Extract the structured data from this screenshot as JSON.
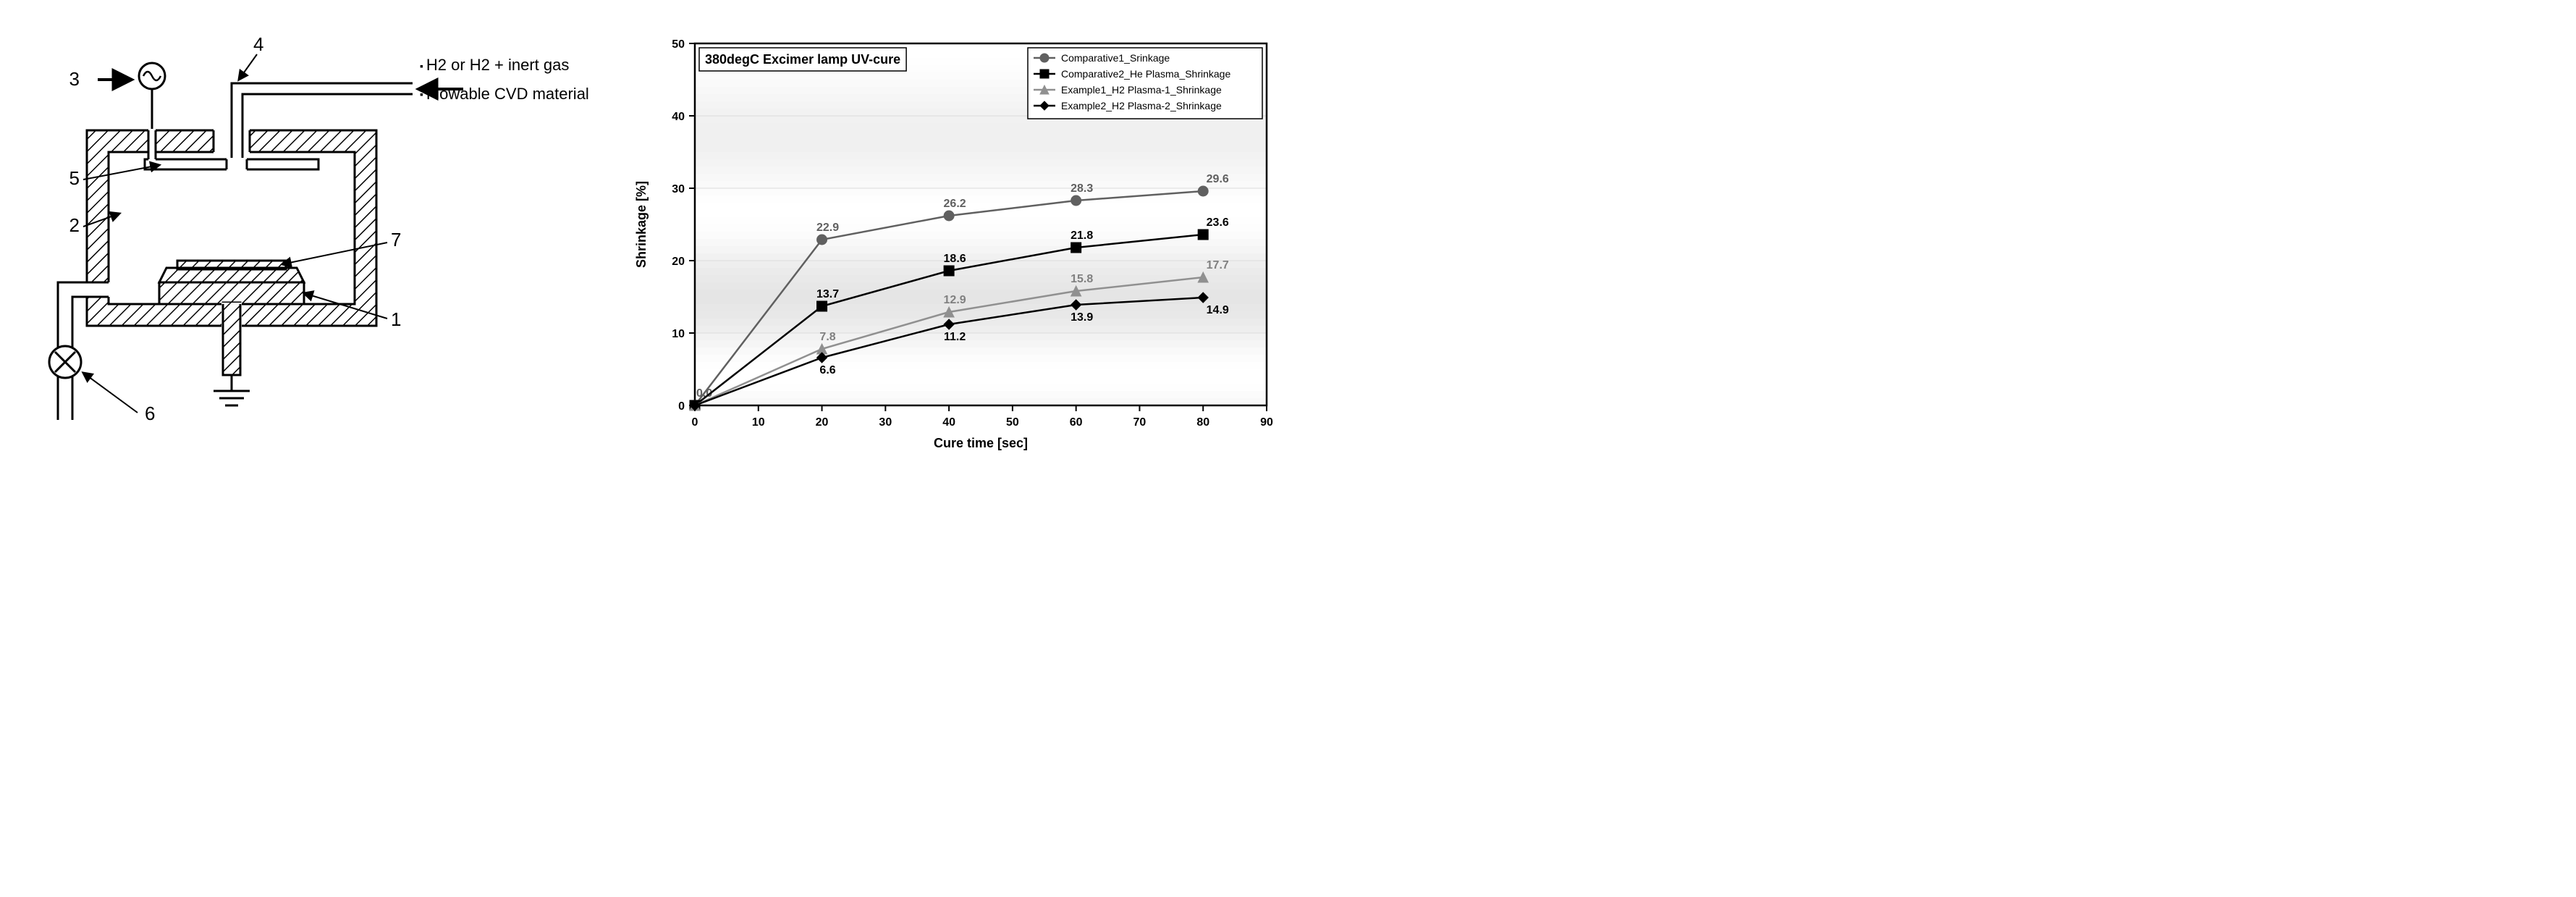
{
  "diagram": {
    "labels": {
      "l1": "1",
      "l2": "2",
      "l3": "3",
      "l4": "4",
      "l5": "5",
      "l6": "6",
      "l7": "7"
    },
    "annotations": {
      "a1": "H2 or H2 + inert gas",
      "a2": "Flowable CVD material"
    },
    "colors": {
      "stroke": "#000000",
      "hatch": "#000000",
      "bg": "#ffffff"
    },
    "stroke_width": 3,
    "font_size": 24
  },
  "chart": {
    "type": "line",
    "title": "380degC Excimer lamp UV-cure",
    "title_fontsize": 18,
    "title_fontweight": "bold",
    "xlabel": "Cure time [sec]",
    "ylabel": "Shrinkage [%]",
    "label_fontsize": 18,
    "label_fontweight": "bold",
    "xlim": [
      0,
      90
    ],
    "ylim": [
      0,
      50
    ],
    "xtick_step": 10,
    "ytick_step": 10,
    "tick_fontsize": 16,
    "background_gradient": {
      "top_color": "#ffffff",
      "bottom_color": "#c8c8c8",
      "bands": 5
    },
    "grid_color": "#dcdcdc",
    "axis_color": "#000000",
    "series": [
      {
        "name": "Comparative1_Srinkage",
        "marker": "circle",
        "color": "#606060",
        "line_width": 2.5,
        "marker_size": 7,
        "x": [
          0,
          20,
          40,
          60,
          80
        ],
        "y": [
          0.0,
          22.9,
          26.2,
          28.3,
          29.6
        ],
        "labels": [
          "0.0",
          "22.9",
          "26.2",
          "28.3",
          "29.6"
        ],
        "label_color": "#606060"
      },
      {
        "name": "Comparative2_He Plasma_Shrinkage",
        "marker": "square",
        "color": "#000000",
        "line_width": 2.5,
        "marker_size": 7,
        "x": [
          0,
          20,
          40,
          60,
          80
        ],
        "y": [
          0.0,
          13.7,
          18.6,
          21.8,
          23.6
        ],
        "labels": [
          "",
          "13.7",
          "18.6",
          "21.8",
          "23.6"
        ],
        "label_color": "#000000"
      },
      {
        "name": "Example1_H2 Plasma-1_Shrinkage",
        "marker": "triangle",
        "color": "#909090",
        "line_width": 2.5,
        "marker_size": 7,
        "x": [
          0,
          20,
          40,
          60,
          80
        ],
        "y": [
          0.0,
          7.8,
          12.9,
          15.8,
          17.7
        ],
        "labels": [
          "",
          "7.8",
          "12.9",
          "15.8",
          "17.7"
        ],
        "label_color": "#808080"
      },
      {
        "name": "Example2_H2 Plasma-2_Shrinkage",
        "marker": "diamond",
        "color": "#000000",
        "line_width": 2.5,
        "marker_size": 7,
        "x": [
          0,
          20,
          40,
          60,
          80
        ],
        "y": [
          0.0,
          6.6,
          11.2,
          13.9,
          14.9
        ],
        "labels": [
          "",
          "6.6",
          "11.2",
          "13.9",
          "14.9"
        ],
        "label_color": "#000000",
        "label_below": true
      }
    ],
    "legend": {
      "position": "top-right",
      "bg": "#ffffff",
      "border": "#000000",
      "fontsize": 14
    },
    "data_label_fontsize": 16,
    "data_label_fontweight": "bold"
  }
}
